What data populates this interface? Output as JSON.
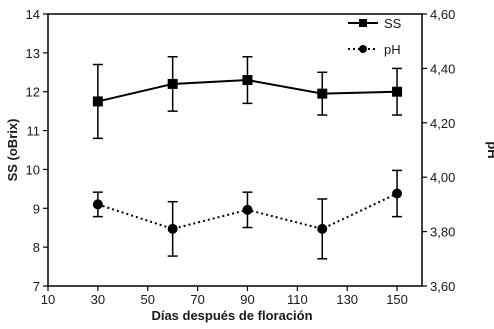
{
  "chart_data": {
    "type": "line",
    "xlabel": "Días después de floración",
    "ylabel_left": "SS (oBrix)",
    "ylabel_right": "pH",
    "x_ticks": [
      10,
      30,
      50,
      70,
      90,
      110,
      130,
      150
    ],
    "xlim": [
      10,
      160
    ],
    "y_left_ticks": [
      7,
      8,
      9,
      10,
      11,
      12,
      13,
      14
    ],
    "y_left_lim": [
      7,
      14
    ],
    "y_right_ticks": [
      "3,60",
      "3,80",
      "4,00",
      "4,20",
      "4,40",
      "4,60"
    ],
    "y_right_lim": [
      3.6,
      4.6
    ],
    "legend_position": "top-right",
    "grid": false,
    "series": [
      {
        "name": "SS",
        "axis": "left",
        "marker": "square",
        "line_style": "solid",
        "color": "#000000",
        "x": [
          30,
          60,
          90,
          120,
          150
        ],
        "y": [
          11.75,
          12.2,
          12.3,
          11.95,
          12.0
        ],
        "err": [
          0.95,
          0.7,
          0.6,
          0.55,
          0.6
        ]
      },
      {
        "name": "pH",
        "axis": "right",
        "marker": "circle",
        "line_style": "dotted",
        "color": "#000000",
        "x": [
          30,
          60,
          90,
          120,
          150
        ],
        "y": [
          3.9,
          3.81,
          3.88,
          3.81,
          3.94
        ],
        "err": [
          0.045,
          0.1,
          0.065,
          0.11,
          0.085
        ]
      }
    ]
  }
}
